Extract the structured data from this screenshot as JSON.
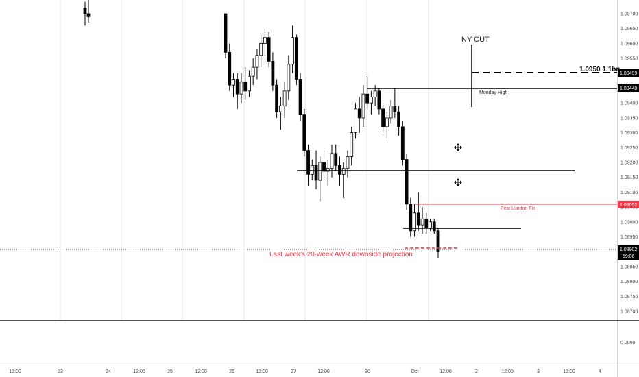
{
  "chart_data": {
    "type": "candlestick",
    "y_ticks": [
      "1.09700",
      "1.09650",
      "1.09600",
      "1.09550",
      "1.09500",
      "1.09450",
      "1.09400",
      "1.09350",
      "1.09300",
      "1.09250",
      "1.09200",
      "1.09150",
      "1.09100",
      "1.09050",
      "1.09000",
      "1.08950",
      "1.08900",
      "1.08850",
      "1.08800",
      "1.08750",
      "1.08700"
    ],
    "ylim": [
      1.0866,
      1.0975
    ],
    "x_ticks": [
      "12:00",
      "23",
      "24",
      "12:00",
      "25",
      "12:00",
      "26",
      "12:00",
      "27",
      "12:00",
      "30",
      "Oct",
      "12:00",
      "2",
      "12:00",
      "3",
      "12:00",
      "4"
    ],
    "subpane_tick": "0.0000",
    "price_tags": {
      "level_499": "1.09499",
      "level_448": "1.09448",
      "level_052": "1.09052",
      "current": "1.08902",
      "countdown": "59:06"
    },
    "annotations": {
      "ny_cut": "NY CUT",
      "option_expiry": "1.0950 1.1bn",
      "monday_high": "Monday High",
      "post_london_fix": "Post London Fix",
      "awr_projection": "Last week's 20-week AWR downside projection"
    },
    "levels": {
      "option_expiry": 1.09499,
      "monday_high": 1.09448,
      "support_1": 1.0917,
      "post_london_fix": 1.09052,
      "support_2": 1.08975,
      "current_price": 1.08902
    },
    "candles": [
      [
        1.0972,
        1.0974,
        1.0966,
        1.097
      ],
      [
        1.097,
        1.0975,
        1.0967,
        1.0969
      ],
      [
        1.097,
        1.097,
        1.0955,
        1.0957
      ],
      [
        1.0957,
        1.096,
        1.0944,
        1.0946
      ],
      [
        1.0946,
        1.095,
        1.0942,
        1.0948
      ],
      [
        1.0948,
        1.095,
        1.0938,
        1.0943
      ],
      [
        1.0943,
        1.095,
        1.094,
        1.0947
      ],
      [
        1.0947,
        1.0952,
        1.0941,
        1.0944
      ],
      [
        1.0944,
        1.0951,
        1.0942,
        1.0949
      ],
      [
        1.0949,
        1.0955,
        1.0946,
        1.0952
      ],
      [
        1.0952,
        1.0958,
        1.0948,
        1.0956
      ],
      [
        1.0956,
        1.0963,
        1.0952,
        1.096
      ],
      [
        1.096,
        1.0965,
        1.0956,
        1.0962
      ],
      [
        1.0962,
        1.0964,
        1.0952,
        1.0954
      ],
      [
        1.0954,
        1.0957,
        1.0944,
        1.0946
      ],
      [
        1.0946,
        1.0948,
        1.0935,
        1.0937
      ],
      [
        1.0937,
        1.0942,
        1.0931,
        1.0939
      ],
      [
        1.0939,
        1.0947,
        1.0935,
        1.0944
      ],
      [
        1.0944,
        1.0956,
        1.0941,
        1.0953
      ],
      [
        1.0953,
        1.0966,
        1.095,
        1.0962
      ],
      [
        1.0962,
        1.0963,
        1.0946,
        1.0948
      ],
      [
        1.0948,
        1.095,
        1.0934,
        1.0936
      ],
      [
        1.0936,
        1.0938,
        1.0922,
        1.0924
      ],
      [
        1.0924,
        1.0926,
        1.0912,
        1.0916
      ],
      [
        1.0916,
        1.0921,
        1.0914,
        1.0919
      ],
      [
        1.0919,
        1.0924,
        1.0911,
        1.0914
      ],
      [
        1.0914,
        1.0922,
        1.0907,
        1.092
      ],
      [
        1.092,
        1.0924,
        1.0914,
        1.0917
      ],
      [
        1.0917,
        1.0921,
        1.0912,
        1.0918
      ],
      [
        1.0918,
        1.0926,
        1.0915,
        1.0923
      ],
      [
        1.0923,
        1.0926,
        1.0917,
        1.0919
      ],
      [
        1.0919,
        1.0922,
        1.0912,
        1.0916
      ],
      [
        1.0916,
        1.092,
        1.0908,
        1.0918
      ],
      [
        1.0918,
        1.0924,
        1.0915,
        1.0922
      ],
      [
        1.0922,
        1.0932,
        1.0919,
        1.093
      ],
      [
        1.093,
        1.094,
        1.0928,
        1.0938
      ],
      [
        1.0938,
        1.0942,
        1.093,
        1.0935
      ],
      [
        1.0935,
        1.0946,
        1.0932,
        1.0943
      ],
      [
        1.0943,
        1.0949,
        1.0938,
        1.094
      ],
      [
        1.094,
        1.0944,
        1.0936,
        1.0942
      ],
      [
        1.0942,
        1.0946,
        1.0939,
        1.0944
      ],
      [
        1.0944,
        1.0945,
        1.0936,
        1.0938
      ],
      [
        1.0938,
        1.094,
        1.093,
        1.0932
      ],
      [
        1.0932,
        1.0937,
        1.0928,
        1.0935
      ],
      [
        1.0935,
        1.0941,
        1.0933,
        1.0939
      ],
      [
        1.0939,
        1.0945,
        1.0935,
        1.0937
      ],
      [
        1.0937,
        1.0939,
        1.0929,
        1.0932
      ],
      [
        1.0932,
        1.0934,
        1.0919,
        1.0921
      ],
      [
        1.0921,
        1.0923,
        1.0904,
        1.0906
      ],
      [
        1.0906,
        1.0908,
        1.0895,
        1.0897
      ],
      [
        1.0897,
        1.0906,
        1.0895,
        1.0903
      ],
      [
        1.0903,
        1.091,
        1.0897,
        1.0899
      ],
      [
        1.0899,
        1.0905,
        1.0896,
        1.0901
      ],
      [
        1.0901,
        1.0903,
        1.0896,
        1.0898
      ],
      [
        1.0898,
        1.0901,
        1.0897,
        1.09
      ],
      [
        1.09,
        1.0901,
        1.0896,
        1.0897
      ],
      [
        1.0897,
        1.0898,
        1.0888,
        1.089
      ]
    ]
  }
}
